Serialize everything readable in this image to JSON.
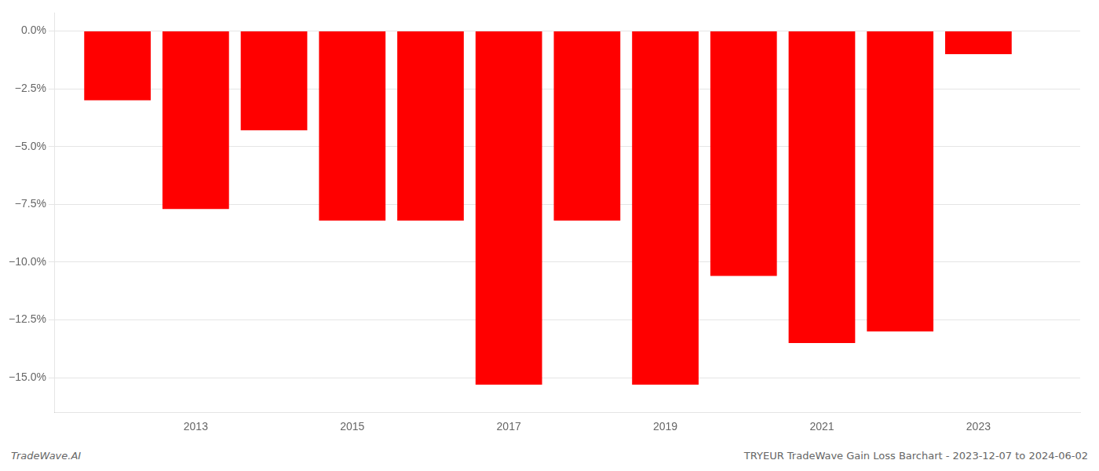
{
  "chart_data": {
    "type": "bar",
    "x": [
      2012,
      2013,
      2014,
      2015,
      2016,
      2017,
      2018,
      2019,
      2020,
      2021,
      2022,
      2023
    ],
    "values": [
      -3.0,
      -7.7,
      -4.3,
      -8.2,
      -8.2,
      -15.3,
      -8.2,
      -15.3,
      -10.6,
      -13.5,
      -13.0,
      -1.0
    ],
    "color": "#ff0000",
    "xlim": [
      2011.2,
      2024.3
    ],
    "xticks": [
      2013,
      2015,
      2017,
      2019,
      2021,
      2023
    ],
    "ylim": [
      -16.5,
      0.8
    ],
    "yticks": [
      {
        "value": 0.0,
        "label": "0.0%"
      },
      {
        "value": -2.5,
        "label": "−2.5%"
      },
      {
        "value": -5.0,
        "label": "−5.0%"
      },
      {
        "value": -7.5,
        "label": "−7.5%"
      },
      {
        "value": -10.0,
        "label": "−10.0%"
      },
      {
        "value": -12.5,
        "label": "−12.5%"
      },
      {
        "value": -15.0,
        "label": "−15.0%"
      }
    ],
    "grid": true,
    "annotations": [
      "TradeWave.AI",
      "TRYEUR TradeWave Gain Loss Barchart - 2023-12-07 to 2024-06-02"
    ]
  }
}
